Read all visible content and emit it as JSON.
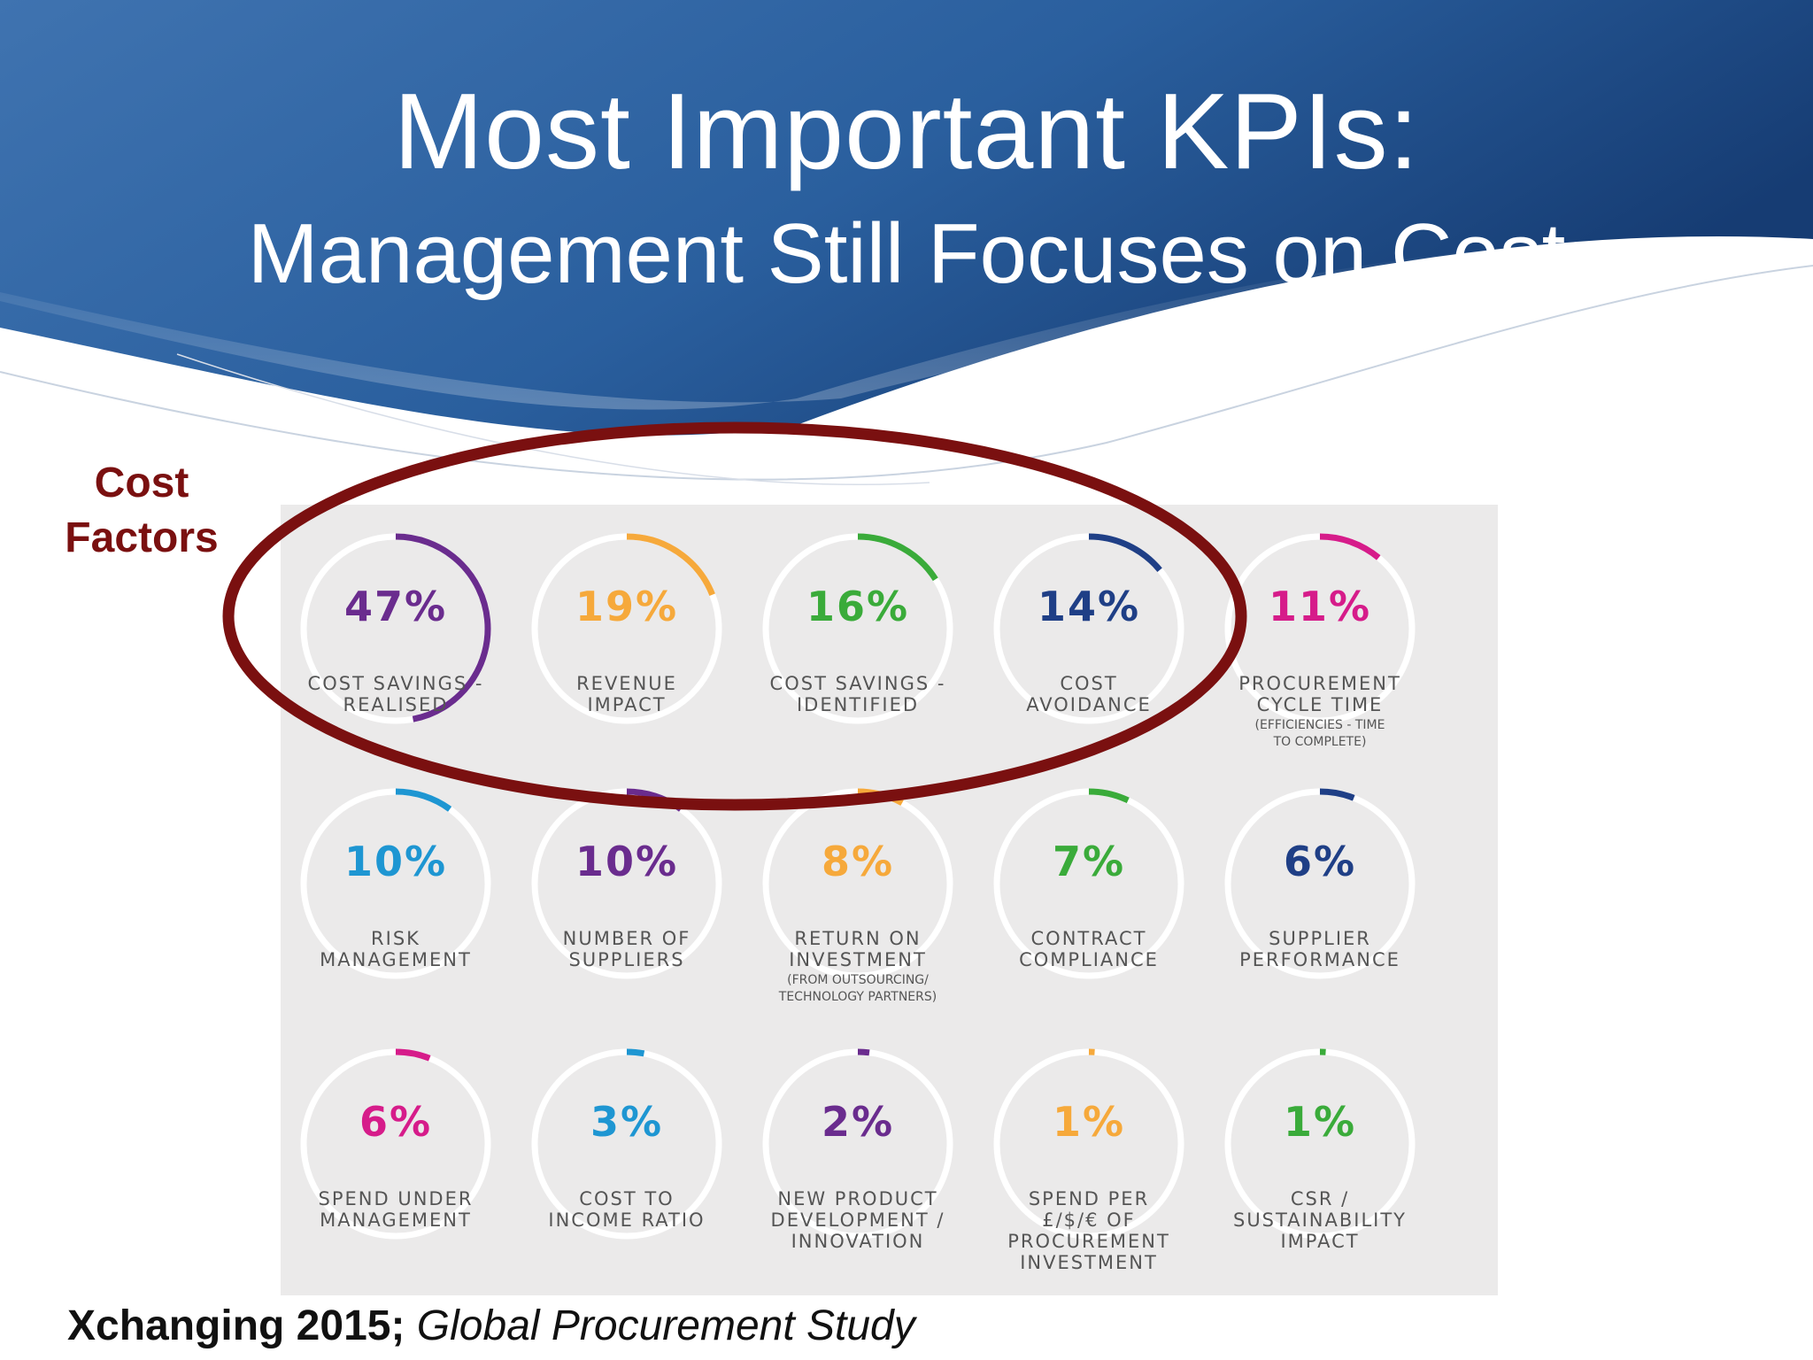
{
  "title": {
    "main": "Most Important KPIs:",
    "subtitle": "Management Still Focuses on Cost"
  },
  "callout": {
    "label": "Cost\nFactors",
    "color": "#7a1010"
  },
  "kpis": [
    {
      "value": "47%",
      "fraction": 0.47,
      "color": "#6a2c8e",
      "label": "COST SAVINGS -\nREALISED",
      "note": ""
    },
    {
      "value": "19%",
      "fraction": 0.19,
      "color": "#f6a93b",
      "label": "REVENUE\nIMPACT",
      "note": ""
    },
    {
      "value": "16%",
      "fraction": 0.16,
      "color": "#3aab3a",
      "label": "COST SAVINGS -\nIDENTIFIED",
      "note": ""
    },
    {
      "value": "14%",
      "fraction": 0.14,
      "color": "#1f3f86",
      "label": "COST\nAVOIDANCE",
      "note": ""
    },
    {
      "value": "11%",
      "fraction": 0.11,
      "color": "#d61c8a",
      "label": "PROCUREMENT\nCYCLE TIME",
      "note": "(EFFICIENCIES - TIME\nTO COMPLETE)"
    },
    {
      "value": "10%",
      "fraction": 0.1,
      "color": "#1e96d2",
      "label": "RISK\nMANAGEMENT",
      "note": ""
    },
    {
      "value": "10%",
      "fraction": 0.1,
      "color": "#6a2c8e",
      "label": "NUMBER OF\nSUPPLIERS",
      "note": ""
    },
    {
      "value": "8%",
      "fraction": 0.08,
      "color": "#f6a93b",
      "label": "RETURN ON\nINVESTMENT",
      "note": "(FROM OUTSOURCING/\nTECHNOLOGY PARTNERS)"
    },
    {
      "value": "7%",
      "fraction": 0.07,
      "color": "#3aab3a",
      "label": "CONTRACT\nCOMPLIANCE",
      "note": ""
    },
    {
      "value": "6%",
      "fraction": 0.06,
      "color": "#1f3f86",
      "label": "SUPPLIER\nPERFORMANCE",
      "note": ""
    },
    {
      "value": "6%",
      "fraction": 0.06,
      "color": "#d61c8a",
      "label": "SPEND UNDER\nMANAGEMENT",
      "note": ""
    },
    {
      "value": "3%",
      "fraction": 0.03,
      "color": "#1e96d2",
      "label": "COST TO\nINCOME RATIO",
      "note": ""
    },
    {
      "value": "2%",
      "fraction": 0.02,
      "color": "#6a2c8e",
      "label": "NEW PRODUCT\nDEVELOPMENT /\nINNOVATION",
      "note": ""
    },
    {
      "value": "1%",
      "fraction": 0.01,
      "color": "#f6a93b",
      "label": "SPEND PER\n£/$/€ OF\nPROCUREMENT\nINVESTMENT",
      "note": ""
    },
    {
      "value": "1%",
      "fraction": 0.01,
      "color": "#3aab3a",
      "label": "CSR /\nSUSTAINABILITY\nIMPACT",
      "note": ""
    }
  ],
  "footer": {
    "source_bold": "Xchanging 2015;",
    "source_italic": "Global Procurement Study"
  },
  "colors": {
    "header_dark": "#1e4f8c",
    "header_light": "#5a8fc8",
    "panel_bg": "#ebeaea",
    "oval": "#7a1010"
  }
}
